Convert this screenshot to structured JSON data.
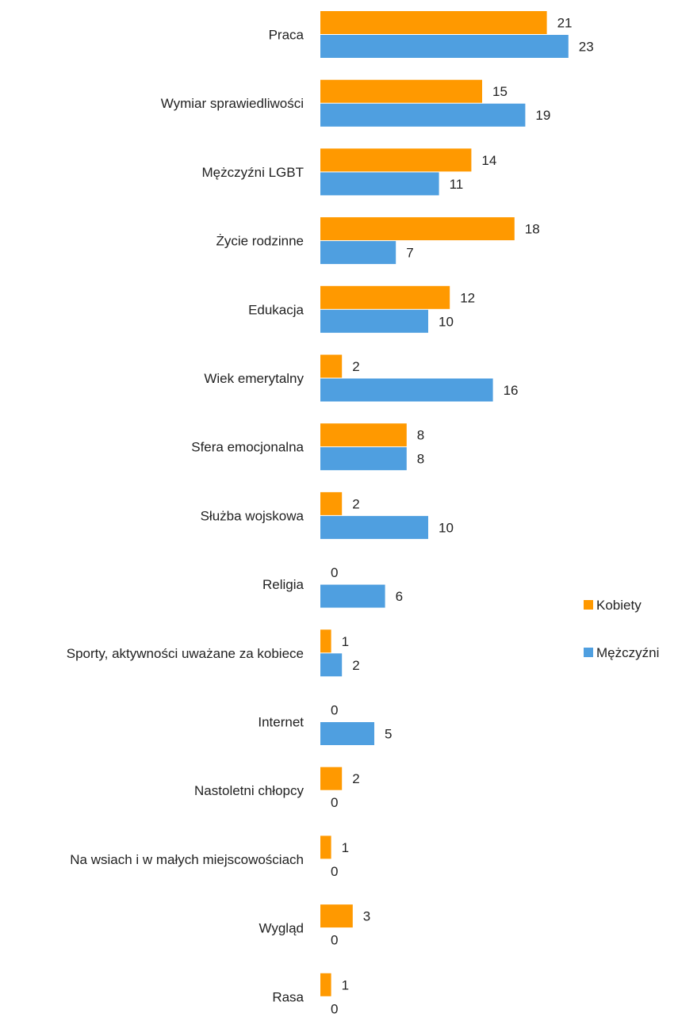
{
  "chart_data": {
    "type": "bar",
    "orientation": "horizontal",
    "categories": [
      "Praca",
      "Wymiar sprawiedliwości",
      "Mężczyźni LGBT",
      "Życie rodzinne",
      "Edukacja",
      "Wiek emerytalny",
      "Sfera emocjonalna",
      "Służba wojskowa",
      "Religia",
      "Sporty, aktywności uważane za kobiece",
      "Internet",
      "Nastoletni chłopcy",
      "Na wsiach i w małych miejscowościach",
      "Wygląd",
      "Rasa"
    ],
    "series": [
      {
        "name": "Kobiety",
        "color": "#ff9900",
        "values": [
          21,
          15,
          14,
          18,
          12,
          2,
          8,
          2,
          0,
          1,
          0,
          2,
          1,
          3,
          1
        ]
      },
      {
        "name": "Mężczyźni",
        "color": "#4f9fe0",
        "values": [
          23,
          19,
          11,
          7,
          10,
          16,
          8,
          10,
          6,
          2,
          5,
          0,
          0,
          0,
          0
        ]
      }
    ],
    "xlim": [
      0,
      23
    ],
    "grid": false,
    "axes_visible": false,
    "data_labels": true,
    "legend": {
      "position": "right"
    }
  }
}
